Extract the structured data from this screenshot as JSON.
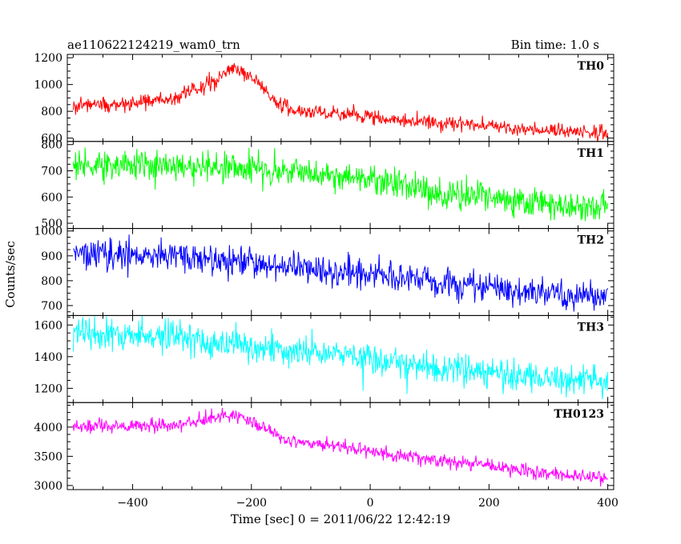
{
  "chart_data": {
    "type": "line",
    "title": "ae110622124219_wam0_trn",
    "subtitle": "Bin time: 1.0 s",
    "xlabel": "Time [sec] 0 = 2011/06/22 12:42:19",
    "ylabel": "Counts/sec",
    "xlim": [
      -510,
      410
    ],
    "x_ticks": [
      -400,
      -200,
      0,
      200,
      400
    ],
    "x_tick_labels": [
      "−400",
      "−200",
      "0",
      "200",
      "400"
    ],
    "x_sampling": {
      "start": -500,
      "end": 400,
      "step": 1
    },
    "grid": false,
    "panels": [
      {
        "name": "TH0",
        "color": "#ff0000",
        "ylim": [
          575,
          1225
        ],
        "yticks": [
          600,
          800,
          1000,
          1200
        ],
        "ytick_labels": [
          "600",
          "800",
          "1000",
          "1200"
        ],
        "noise": 28,
        "trend": [
          [
            -500,
            850
          ],
          [
            -400,
            855
          ],
          [
            -330,
            900
          ],
          [
            -300,
            960
          ],
          [
            -260,
            1020
          ],
          [
            -235,
            1140
          ],
          [
            -220,
            1100
          ],
          [
            -185,
            1010
          ],
          [
            -160,
            880
          ],
          [
            -130,
            800
          ],
          [
            0,
            760
          ],
          [
            100,
            720
          ],
          [
            200,
            690
          ],
          [
            300,
            660
          ],
          [
            400,
            640
          ]
        ]
      },
      {
        "name": "TH1",
        "color": "#00ff00",
        "ylim": [
          480,
          812
        ],
        "yticks": [
          500,
          600,
          700,
          800
        ],
        "ytick_labels": [
          "500",
          "600",
          "700",
          "800"
        ],
        "noise": 28,
        "trend": [
          [
            -500,
            725
          ],
          [
            -300,
            718
          ],
          [
            -150,
            700
          ],
          [
            0,
            670
          ],
          [
            30,
            655
          ],
          [
            100,
            615
          ],
          [
            200,
            600
          ],
          [
            300,
            575
          ],
          [
            400,
            560
          ]
        ]
      },
      {
        "name": "TH2",
        "color": "#0000ff",
        "ylim": [
          660,
          1010
        ],
        "yticks": [
          700,
          800,
          900,
          1000
        ],
        "ytick_labels": [
          "700",
          "800",
          "900",
          "1000"
        ],
        "noise": 30,
        "trend": [
          [
            -500,
            915
          ],
          [
            -400,
            905
          ],
          [
            -250,
            880
          ],
          [
            -100,
            850
          ],
          [
            0,
            825
          ],
          [
            100,
            800
          ],
          [
            200,
            770
          ],
          [
            300,
            745
          ],
          [
            400,
            730
          ]
        ]
      },
      {
        "name": "TH3",
        "color": "#00ffff",
        "ylim": [
          1110,
          1660
        ],
        "yticks": [
          1200,
          1400,
          1600
        ],
        "ytick_labels": [
          "1200",
          "1400",
          "1600"
        ],
        "noise": 48,
        "trend": [
          [
            -500,
            1545
          ],
          [
            -350,
            1530
          ],
          [
            -200,
            1460
          ],
          [
            -50,
            1410
          ],
          [
            0,
            1375
          ],
          [
            100,
            1330
          ],
          [
            200,
            1300
          ],
          [
            300,
            1260
          ],
          [
            400,
            1230
          ]
        ]
      },
      {
        "name": "TH0123",
        "color": "#ff00ff",
        "ylim": [
          2930,
          4420
        ],
        "yticks": [
          3000,
          3500,
          4000
        ],
        "ytick_labels": [
          "3000",
          "3500",
          "4000"
        ],
        "noise": 55,
        "trend": [
          [
            -500,
            4020
          ],
          [
            -400,
            4030
          ],
          [
            -330,
            4040
          ],
          [
            -290,
            4100
          ],
          [
            -240,
            4220
          ],
          [
            -220,
            4200
          ],
          [
            -180,
            4000
          ],
          [
            -150,
            3800
          ],
          [
            -100,
            3720
          ],
          [
            0,
            3580
          ],
          [
            100,
            3450
          ],
          [
            200,
            3340
          ],
          [
            300,
            3200
          ],
          [
            400,
            3120
          ]
        ]
      }
    ]
  }
}
